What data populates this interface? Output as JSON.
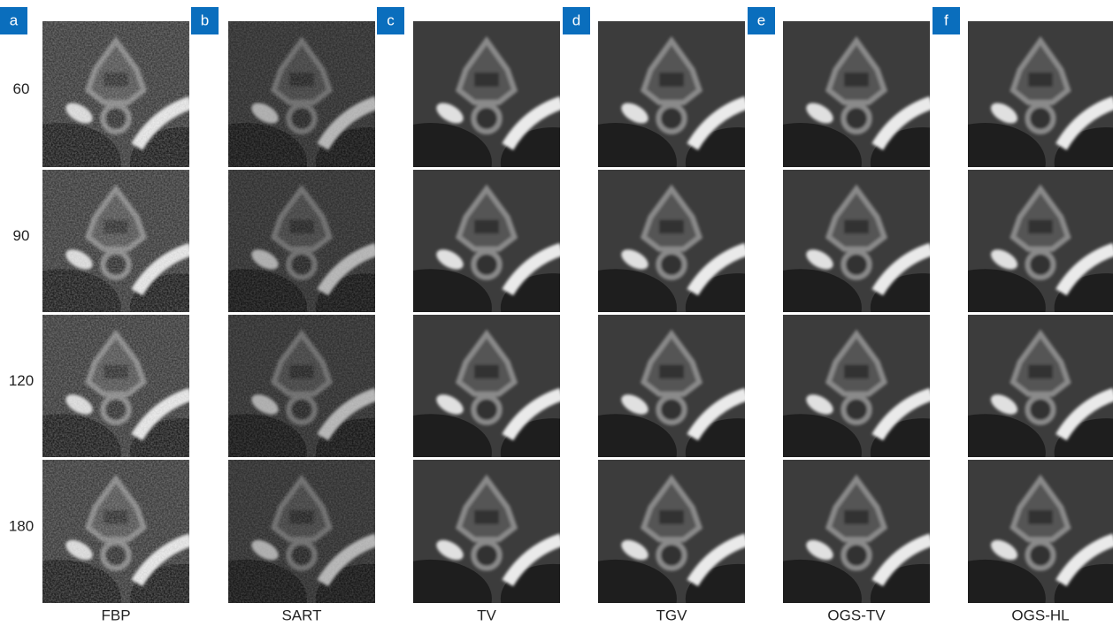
{
  "panels": [
    {
      "letter": "a",
      "method": "FBP"
    },
    {
      "letter": "b",
      "method": "SART"
    },
    {
      "letter": "c",
      "method": "TV"
    },
    {
      "letter": "d",
      "method": "TGV"
    },
    {
      "letter": "e",
      "method": "OGS-TV"
    },
    {
      "letter": "f",
      "method": "OGS-HL"
    }
  ],
  "row_labels": [
    "60",
    "90",
    "120",
    "180"
  ]
}
